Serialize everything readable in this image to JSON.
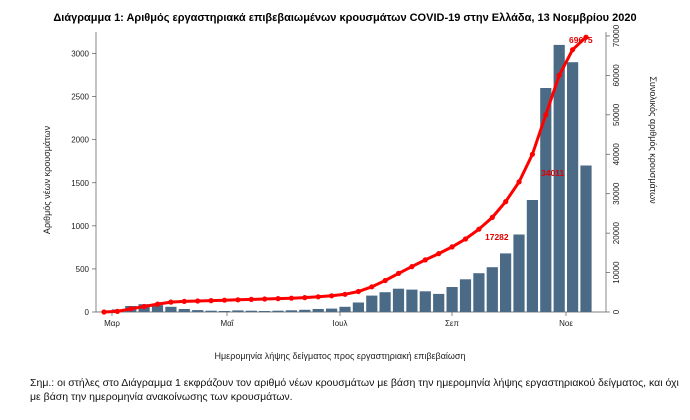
{
  "chart_data": {
    "type": "bar",
    "title": "Διάγραμμα 1: Αριθμός εργαστηριακά επιβεβαιωμένων κρουσμάτων COVID-19 στην Ελλάδα, 13 Νοεμβρίου 2020",
    "xlabel": "Ημερομηνία λήψης δείγματος προς εργαστηριακή επιβεβαίωση",
    "ylabel": "Αριθμός νέων κρουσμάτων",
    "y2label": "Συνολικός αριθμός κρουσμάτων",
    "x_tick_labels": [
      "Μαρ",
      "Μαΐ",
      "Ιουλ",
      "Σεπ",
      "Νοε"
    ],
    "ylim": [
      0,
      3250
    ],
    "y_ticks": [
      0,
      500,
      1000,
      1500,
      2000,
      2500,
      3000
    ],
    "y2lim": [
      0,
      71000
    ],
    "y2_ticks": [
      0,
      10000,
      20000,
      30000,
      40000,
      50000,
      60000,
      70000
    ],
    "series": [
      {
        "type": "bar",
        "color": "#4a6a86",
        "note": "daily new cases (weekly points, in order from late Feb to mid Nov)",
        "values": [
          2,
          30,
          70,
          90,
          80,
          60,
          35,
          22,
          15,
          12,
          18,
          15,
          12,
          15,
          20,
          25,
          35,
          40,
          60,
          110,
          190,
          230,
          270,
          260,
          240,
          210,
          290,
          380,
          450,
          520,
          680,
          900,
          1300,
          2600,
          3100,
          2900,
          1700
        ]
      },
      {
        "type": "line",
        "color": "#ff0000",
        "note": "cumulative cases (same weekly points)",
        "values": [
          0,
          150,
          800,
          1400,
          2000,
          2500,
          2700,
          2800,
          2900,
          3000,
          3100,
          3200,
          3300,
          3400,
          3500,
          3650,
          3850,
          4100,
          4500,
          5200,
          6400,
          8000,
          9800,
          11500,
          13200,
          14800,
          16500,
          18500,
          21000,
          24000,
          28000,
          33000,
          40000,
          50000,
          60000,
          66500,
          69675
        ]
      }
    ],
    "annotations": [
      "17282",
      "34011",
      "69675"
    ]
  },
  "note": "Σημ.: οι στήλες στο Διάγραμμα 1 εκφράζουν τον αριθμό νέων κρουσμάτων με βάση την ημερομηνία λήψης εργαστηριακού δείγματος, και όχι με βάση την ημερομηνία ανακοίνωσης των κρουσμάτων."
}
